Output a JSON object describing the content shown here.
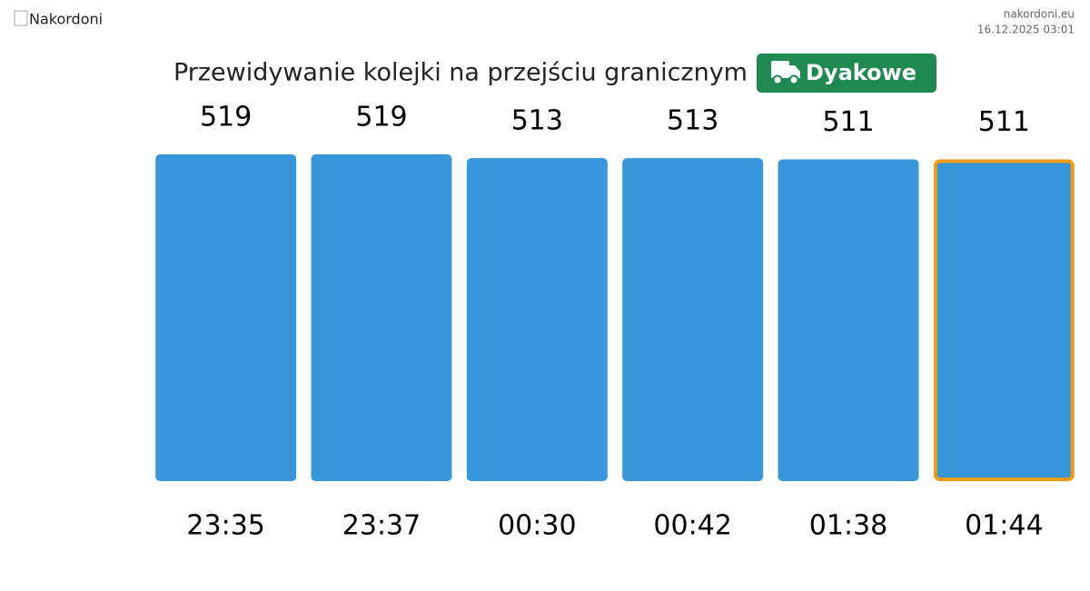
{
  "header": {
    "logo_alt": "Nakordoni",
    "site": "nakordoni.eu",
    "timestamp": "16.12.2025 03:01"
  },
  "chart_data": {
    "type": "bar",
    "title": "Przewidywanie kolejki na przejściu granicznym",
    "badge": "Dyakowe",
    "categories": [
      "23:35",
      "23:37",
      "00:30",
      "00:42",
      "01:38",
      "01:44"
    ],
    "values": [
      519,
      519,
      513,
      513,
      511,
      511
    ],
    "color": "#3897db",
    "highlight_category": "01:44",
    "highlight_color": "#f39c12"
  }
}
